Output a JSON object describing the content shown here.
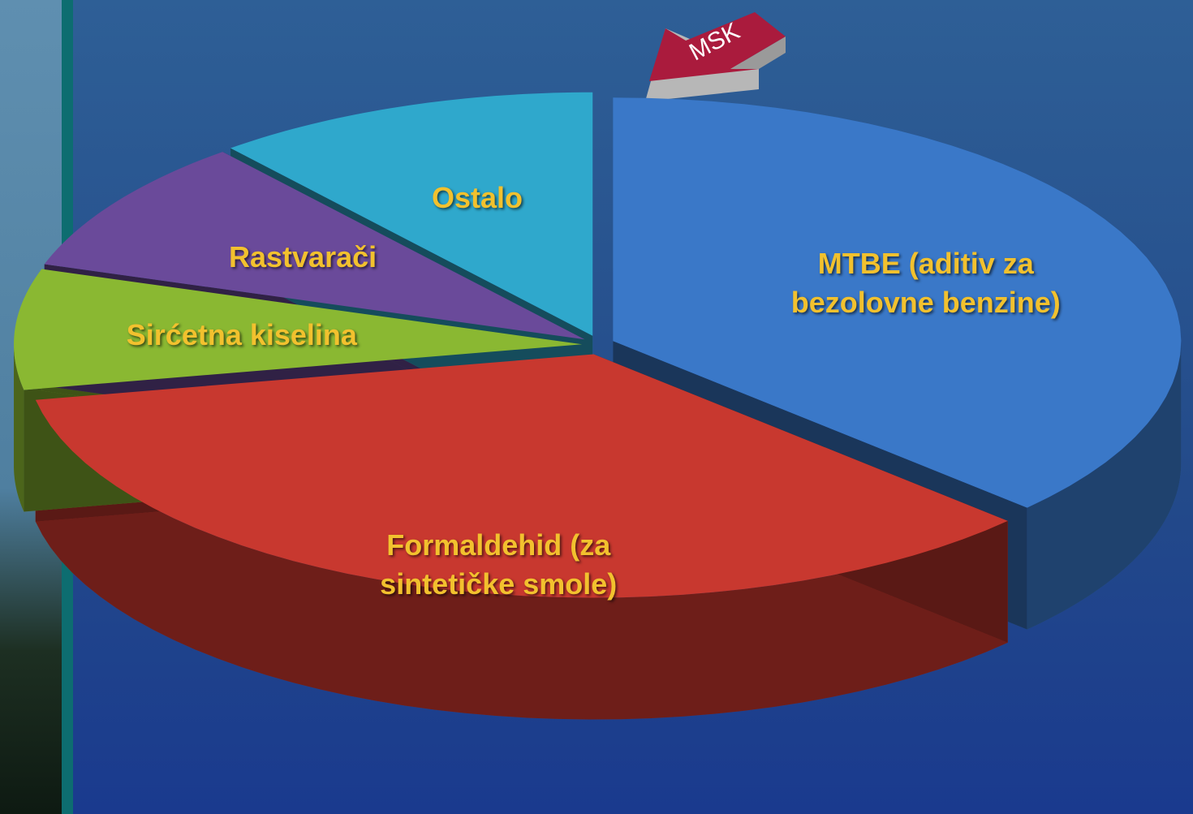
{
  "logo": "MSK",
  "chart_data": {
    "type": "pie",
    "categories": [
      "MTBE (aditiv za bezolovne benzine)",
      "Formaldehid (za sintetičke smole)",
      "Sirćetna kiselina",
      "Rastvarači",
      "Ostalo"
    ],
    "values": [
      37,
      35,
      8,
      9,
      11
    ],
    "colors": [
      "#3a78c8",
      "#c8382f",
      "#8ab832",
      "#6a4a9a",
      "#2fa8cc"
    ]
  }
}
